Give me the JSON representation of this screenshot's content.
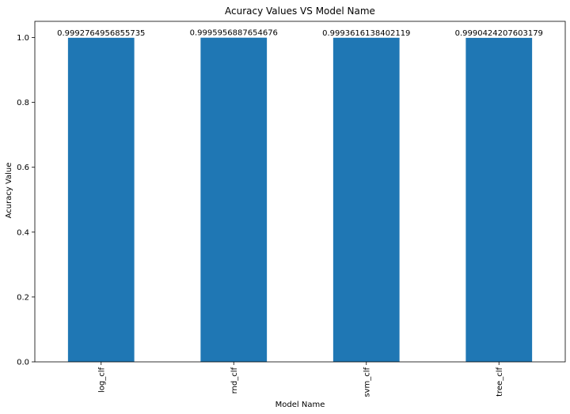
{
  "chart_data": {
    "type": "bar",
    "title": "Acuracy Values VS Model Name",
    "xlabel": "Model Name",
    "ylabel": "Acuracy Value",
    "categories": [
      "log_clf",
      "rnd_clf",
      "svm_clf",
      "tree_clf"
    ],
    "values": [
      0.9992764956855735,
      0.9995956887654676,
      0.9993616138402119,
      0.9990424207603179
    ],
    "data_labels": [
      "0.9992764956855735",
      "0.9995956887654676",
      "0.9993616138402119",
      "0.9990424207603179"
    ],
    "ylim": [
      0,
      1.05
    ],
    "yticks": [
      0.0,
      0.2,
      0.4,
      0.6,
      0.8,
      1.0
    ],
    "ytick_labels": [
      "0.0",
      "0.2",
      "0.4",
      "0.6",
      "0.8",
      "1.0"
    ],
    "grid": false,
    "legend": "none",
    "colors": {
      "bar": "#1f77b4",
      "axis": "#000000",
      "background": "#ffffff"
    }
  }
}
